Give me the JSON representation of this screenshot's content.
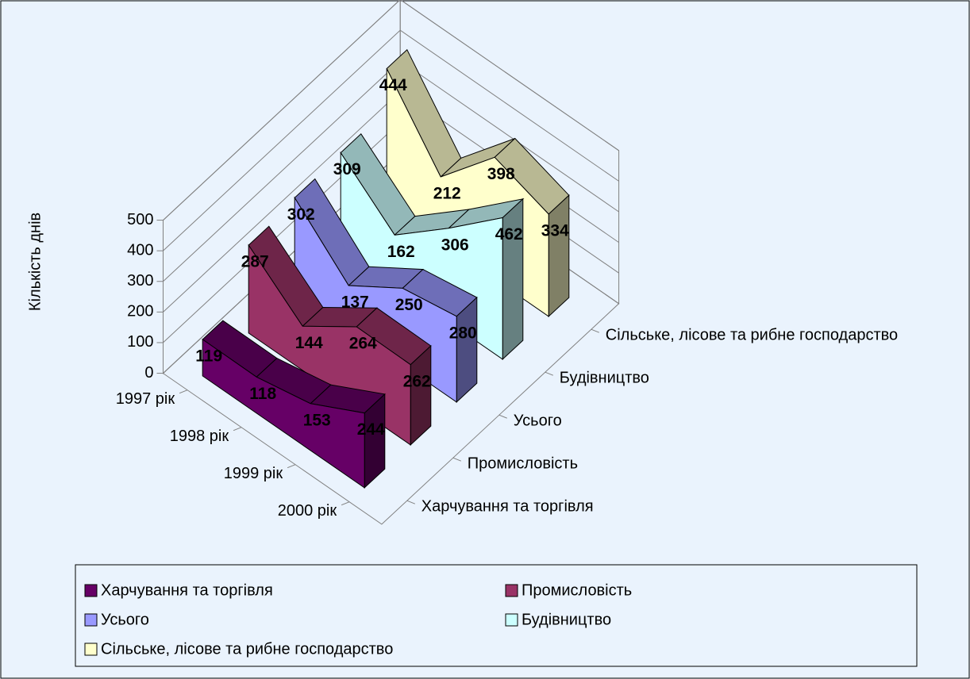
{
  "chart_data": {
    "type": "line3d",
    "y_label": "Кількість днів",
    "categories": [
      "1997 рік",
      "1998 рік",
      "1999 рік",
      "2000 рік"
    ],
    "series": [
      {
        "name": "Харчування та торгівля",
        "color": "#660066",
        "values": [
          119,
          118,
          153,
          244
        ]
      },
      {
        "name": "Промисловість",
        "color": "#993366",
        "values": [
          287,
          144,
          264,
          262
        ]
      },
      {
        "name": "Усього",
        "color": "#9999FF",
        "values": [
          302,
          137,
          250,
          280
        ]
      },
      {
        "name": "Будівництво",
        "color": "#CCFFFF",
        "values": [
          309,
          162,
          306,
          462
        ]
      },
      {
        "name": "Сільське, лісове та рибне господарство",
        "color": "#FFFFCC",
        "values": [
          444,
          212,
          398,
          334
        ]
      }
    ],
    "ylim": [
      0,
      500
    ],
    "yticks": [
      0,
      100,
      200,
      300,
      400,
      500
    ],
    "grid": true,
    "legend": "bottom"
  }
}
